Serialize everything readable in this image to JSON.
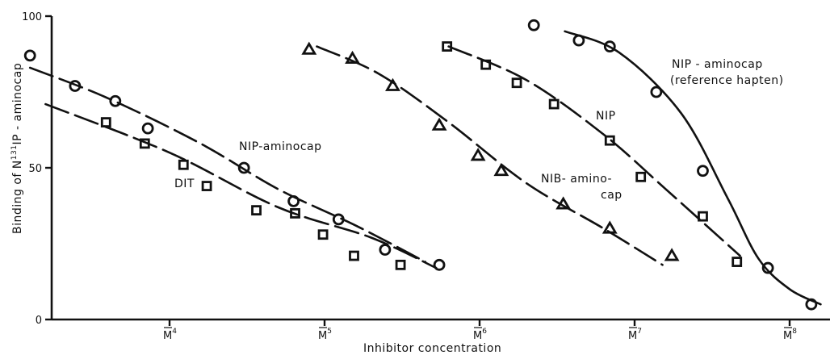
{
  "chart_data": {
    "type": "line",
    "xlabel": "Inhibitor concentration",
    "ylabel_prefix": "Binding of  N",
    "ylabel_sup": "131",
    "ylabel_suffix": "IP - aminocap",
    "ylim": [
      0,
      100
    ],
    "y_ticks": [
      {
        "value": 0,
        "label": "0"
      },
      {
        "value": 50,
        "label": "50"
      },
      {
        "value": 100,
        "label": "100"
      }
    ],
    "x_scale": "log-decades",
    "x_ticks": [
      {
        "value": 4,
        "label": "M",
        "exp": "4"
      },
      {
        "value": 5,
        "label": "M",
        "exp": "5"
      },
      {
        "value": 6,
        "label": "M",
        "exp": "6"
      },
      {
        "value": 7,
        "label": "M",
        "exp": "7"
      },
      {
        "value": 8,
        "label": "M",
        "exp": "8"
      }
    ],
    "series": [
      {
        "id": "dit",
        "label": "DIT",
        "marker": "square",
        "dashed": true,
        "x": [
          3.59,
          3.84,
          4.09,
          4.24,
          4.56,
          4.81,
          4.99,
          5.19,
          5.49
        ],
        "y": [
          65,
          58,
          51,
          44,
          36,
          35,
          28,
          21,
          18
        ],
        "fit": [
          [
            3.2,
            71
          ],
          [
            4.0,
            55
          ],
          [
            4.7,
            37
          ],
          [
            5.3,
            27
          ],
          [
            5.72,
            17
          ]
        ]
      },
      {
        "id": "nip-aminocap",
        "label": "NIP-aminocap",
        "marker": "circle",
        "dashed": true,
        "x": [
          3.1,
          3.39,
          3.65,
          3.86,
          4.48,
          4.8,
          5.09,
          5.39,
          5.74
        ],
        "y": [
          87,
          77,
          72,
          63,
          50,
          39,
          33,
          23,
          18
        ],
        "fit": [
          [
            3.1,
            83
          ],
          [
            3.6,
            73
          ],
          [
            4.2,
            58
          ],
          [
            4.7,
            43
          ],
          [
            5.2,
            31
          ],
          [
            5.65,
            19
          ]
        ]
      },
      {
        "id": "nib-aminocap",
        "label_line1": "NIB- amino-",
        "label_line2": "cap",
        "marker": "triangle",
        "dashed": true,
        "x": [
          4.9,
          5.18,
          5.44,
          5.74,
          5.99,
          6.14,
          6.54,
          6.84,
          7.24
        ],
        "y": [
          89,
          86,
          77,
          64,
          54,
          49,
          38,
          30,
          21
        ],
        "fit": [
          [
            4.95,
            90
          ],
          [
            5.35,
            81
          ],
          [
            5.8,
            65
          ],
          [
            6.3,
            45
          ],
          [
            6.8,
            30
          ],
          [
            7.18,
            18
          ]
        ]
      },
      {
        "id": "nip",
        "label": "NIP",
        "marker": "square",
        "dashed": true,
        "x": [
          5.79,
          6.04,
          6.24,
          6.48,
          6.84,
          7.04,
          7.44,
          7.66
        ],
        "y": [
          90,
          84,
          78,
          71,
          59,
          47,
          34,
          19
        ],
        "fit": [
          [
            5.8,
            90
          ],
          [
            6.3,
            79
          ],
          [
            6.8,
            61
          ],
          [
            7.2,
            43
          ],
          [
            7.68,
            21
          ]
        ]
      },
      {
        "id": "nip-aminocap-ref",
        "label_line1": "NIP - aminocap",
        "label_line2": "(reference hapten)",
        "marker": "circle",
        "dashed": false,
        "x": [
          6.35,
          6.64,
          6.84,
          7.14,
          7.44,
          7.86,
          8.14
        ],
        "y": [
          97,
          92,
          90,
          75,
          49,
          17,
          5
        ],
        "fit": [
          [
            6.55,
            95
          ],
          [
            6.9,
            88
          ],
          [
            7.3,
            68
          ],
          [
            7.6,
            40
          ],
          [
            7.8,
            20
          ],
          [
            8.0,
            10
          ],
          [
            8.2,
            5
          ]
        ]
      }
    ]
  }
}
